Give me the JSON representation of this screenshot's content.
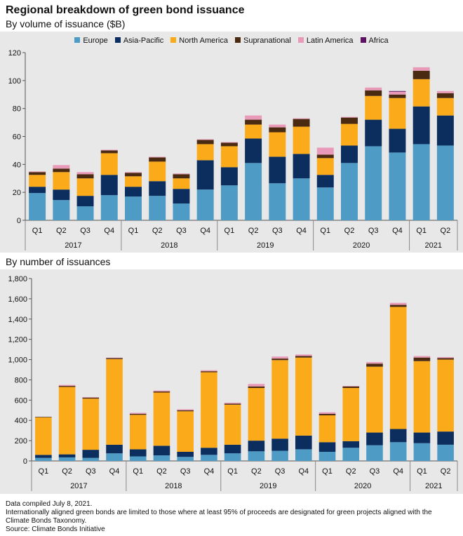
{
  "title": "Regional breakdown of green bond issuance",
  "subtitle_volume": "By volume of issuance ($B)",
  "subtitle_count": "By number of issuances",
  "footer": [
    "Data compiled July 8, 2021.",
    "Internationally aligned green bonds are limited to those where at least 95% of proceeds are designated for green projects aligned with the",
    "Climate Bonds Taxonomy.",
    "Source: Climate Bonds Initiative"
  ],
  "legend": [
    {
      "name": "Europe",
      "color": "#4e9bc6"
    },
    {
      "name": "Asia-Pacific",
      "color": "#0b2e5e"
    },
    {
      "name": "North America",
      "color": "#fbab1a"
    },
    {
      "name": "Supranational",
      "color": "#4a2a10"
    },
    {
      "name": "Latin America",
      "color": "#e99ab9"
    },
    {
      "name": "Africa",
      "color": "#5c1460"
    }
  ],
  "chart_data": [
    {
      "type": "bar",
      "stacked": true,
      "title": "By volume of issuance ($B)",
      "categories": [
        "Q1",
        "Q2",
        "Q3",
        "Q4",
        "Q1",
        "Q2",
        "Q3",
        "Q4",
        "Q1",
        "Q2",
        "Q3",
        "Q4",
        "Q1",
        "Q2",
        "Q3",
        "Q4",
        "Q1",
        "Q2"
      ],
      "groups": [
        {
          "label": "2017",
          "count": 4
        },
        {
          "label": "2018",
          "count": 4
        },
        {
          "label": "2019",
          "count": 4
        },
        {
          "label": "2020",
          "count": 4
        },
        {
          "label": "2021",
          "count": 2
        }
      ],
      "ylim": [
        0,
        120
      ],
      "yticks": [
        "0",
        "20",
        "40",
        "60",
        "80",
        "100",
        "120"
      ],
      "yticks_values": [
        0,
        20,
        40,
        60,
        80,
        100,
        120
      ],
      "grid": false,
      "legend_position": "top",
      "series": [
        {
          "name": "Europe",
          "color": "#4e9bc6",
          "values": [
            19.5,
            14.5,
            10,
            18,
            17,
            17.5,
            12,
            22,
            25,
            41,
            26.5,
            30,
            23.5,
            41,
            53,
            48.5,
            54.5,
            53.5
          ]
        },
        {
          "name": "Asia-Pacific",
          "color": "#0b2e5e",
          "values": [
            4.5,
            7.5,
            7.5,
            14.5,
            7,
            10.5,
            10.5,
            21,
            13,
            17.5,
            19,
            17.5,
            9,
            12.5,
            19,
            17,
            27,
            21.5
          ]
        },
        {
          "name": "North America",
          "color": "#fbab1a",
          "values": [
            8.5,
            12.5,
            12.5,
            15.5,
            7.5,
            14,
            7.5,
            11.5,
            15,
            10,
            17.5,
            19.5,
            12,
            15.5,
            17,
            22,
            19.5,
            12.5
          ]
        },
        {
          "name": "Supranational",
          "color": "#4a2a10",
          "values": [
            2,
            2.5,
            3,
            2,
            2.5,
            3,
            3,
            3,
            2.5,
            3.5,
            3.5,
            5.5,
            2.5,
            4.5,
            4,
            2.5,
            6,
            3.5
          ]
        },
        {
          "name": "Latin America",
          "color": "#e99ab9",
          "values": [
            0.5,
            2.5,
            1.5,
            0.5,
            0.5,
            0.5,
            0.5,
            0.5,
            0.5,
            3,
            2,
            0.5,
            5,
            0.5,
            2,
            2,
            2.5,
            1.5
          ]
        },
        {
          "name": "Africa",
          "color": "#5c1460",
          "values": [
            0,
            0,
            0,
            0,
            0,
            0,
            0,
            0,
            0,
            0,
            0,
            0,
            0,
            0,
            0,
            0.5,
            0,
            0
          ]
        }
      ]
    },
    {
      "type": "bar",
      "stacked": true,
      "title": "By number of issuances",
      "categories": [
        "Q1",
        "Q2",
        "Q3",
        "Q4",
        "Q1",
        "Q2",
        "Q3",
        "Q4",
        "Q1",
        "Q2",
        "Q3",
        "Q4",
        "Q1",
        "Q2",
        "Q3",
        "Q4",
        "Q1",
        "Q2"
      ],
      "groups": [
        {
          "label": "2017",
          "count": 4
        },
        {
          "label": "2018",
          "count": 4
        },
        {
          "label": "2019",
          "count": 4
        },
        {
          "label": "2020",
          "count": 4
        },
        {
          "label": "2021",
          "count": 2
        }
      ],
      "ylim": [
        0,
        1800
      ],
      "yticks": [
        "0",
        "200",
        "400",
        "600",
        "800",
        "1,000",
        "1,200",
        "1,400",
        "1,600",
        "1,800"
      ],
      "yticks_values": [
        0,
        200,
        400,
        600,
        800,
        1000,
        1200,
        1400,
        1600,
        1800
      ],
      "grid": false,
      "series": [
        {
          "name": "Europe",
          "color": "#4e9bc6",
          "values": [
            30,
            35,
            30,
            75,
            45,
            55,
            40,
            60,
            75,
            95,
            100,
            115,
            90,
            130,
            155,
            185,
            175,
            160
          ]
        },
        {
          "name": "Asia-Pacific",
          "color": "#0b2e5e",
          "values": [
            30,
            30,
            80,
            85,
            70,
            95,
            50,
            70,
            85,
            105,
            120,
            135,
            95,
            65,
            125,
            130,
            105,
            130
          ]
        },
        {
          "name": "North America",
          "color": "#fbab1a",
          "values": [
            370,
            665,
            505,
            845,
            340,
            525,
            400,
            745,
            395,
            520,
            775,
            770,
            265,
            525,
            650,
            1205,
            705,
            710
          ]
        },
        {
          "name": "Supranational",
          "color": "#4a2a10",
          "values": [
            5,
            10,
            10,
            10,
            10,
            10,
            10,
            10,
            10,
            15,
            15,
            15,
            15,
            15,
            30,
            20,
            35,
            15
          ]
        },
        {
          "name": "Latin America",
          "color": "#e99ab9",
          "values": [
            0,
            10,
            5,
            5,
            10,
            10,
            10,
            10,
            10,
            25,
            20,
            15,
            15,
            5,
            15,
            20,
            15,
            10
          ]
        },
        {
          "name": "Africa",
          "color": "#5c1460",
          "values": [
            0,
            0,
            0,
            0,
            0,
            0,
            0,
            0,
            0,
            0,
            0,
            0,
            0,
            0,
            0,
            0,
            0,
            0
          ]
        }
      ]
    }
  ]
}
